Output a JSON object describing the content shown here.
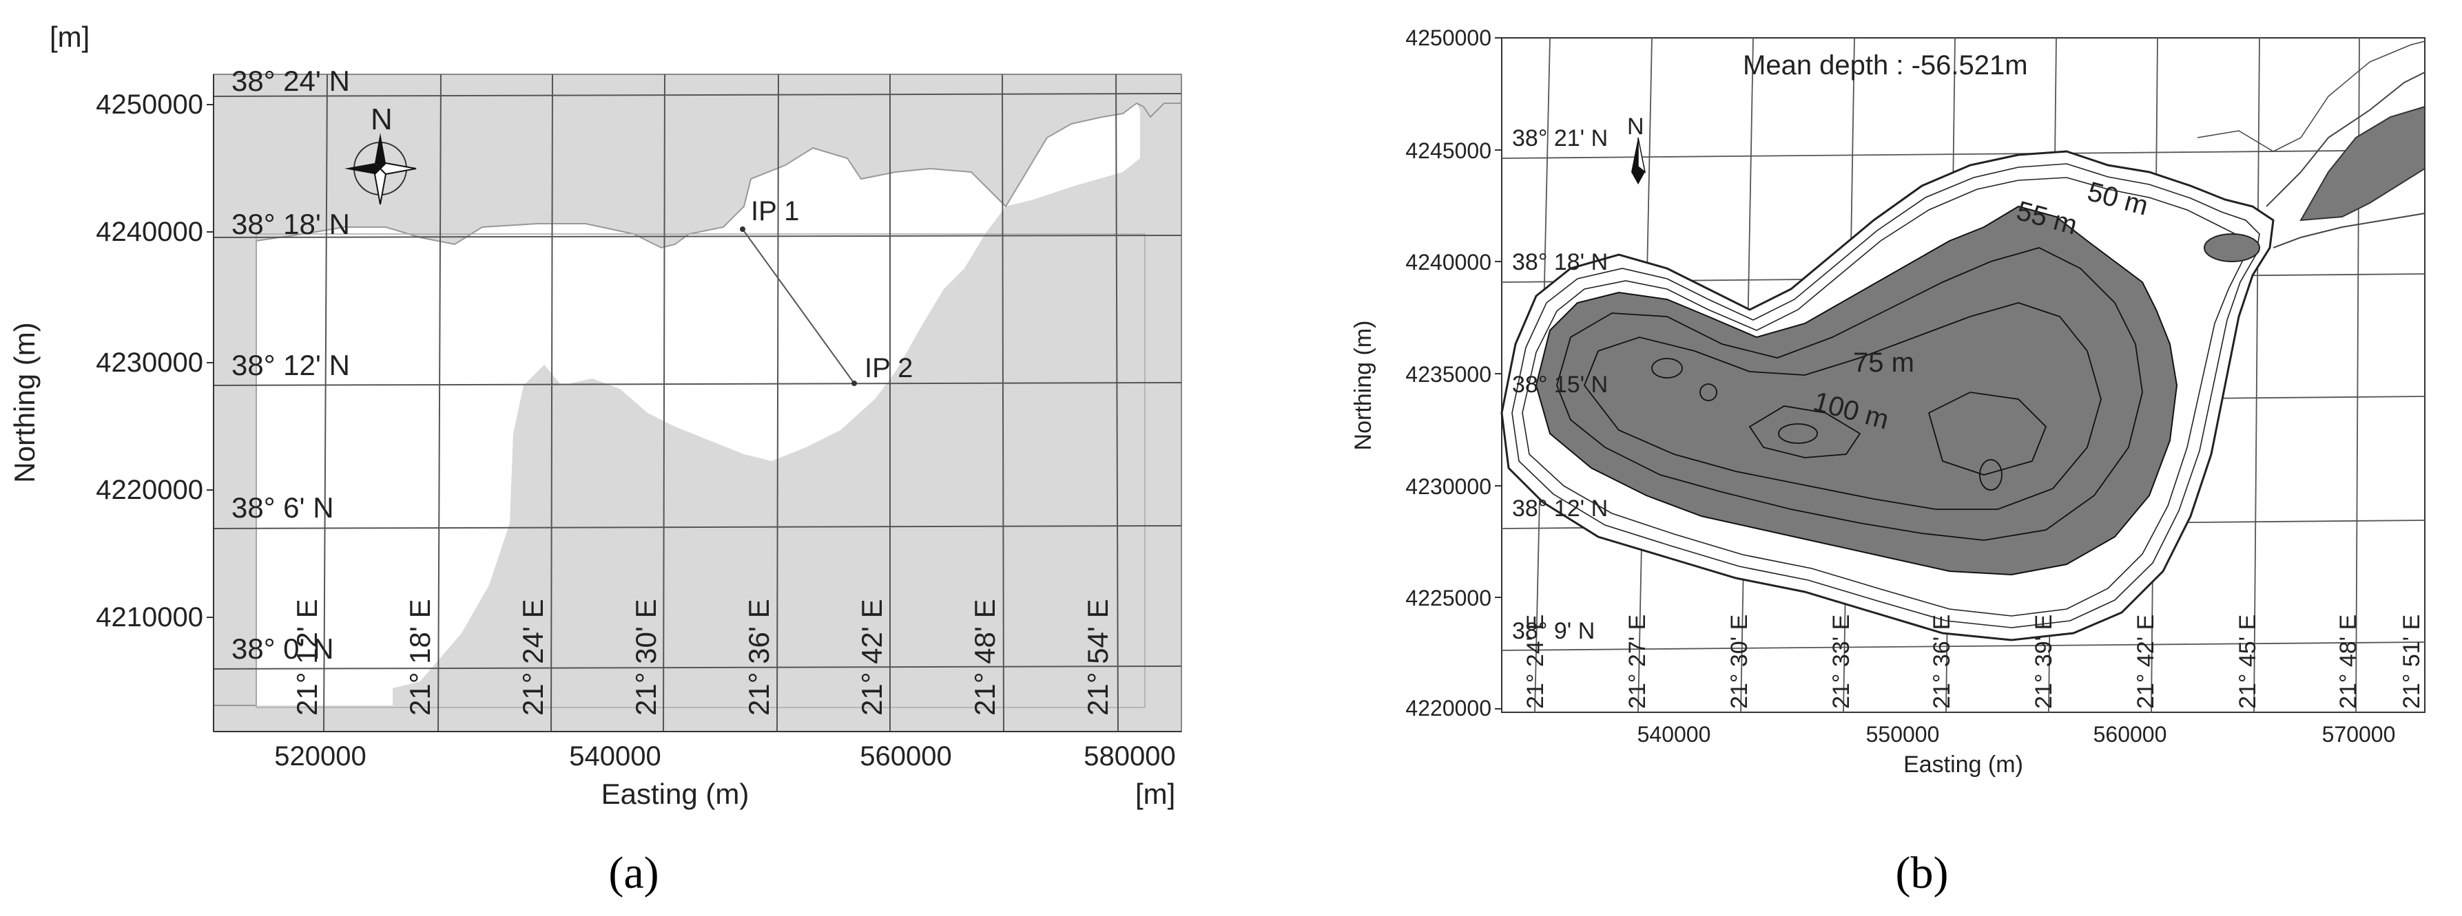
{
  "panel_a": {
    "unit_top": "[m]",
    "unit_bottom": "[m]",
    "x_label": "Easting (m)",
    "y_label": "Northing (m)",
    "x_ticks": [
      "520000",
      "540000",
      "560000",
      "580000"
    ],
    "y_ticks": [
      "4250000",
      "4240000",
      "4230000",
      "4220000",
      "4210000"
    ],
    "lat_labels": [
      "38° 24' N",
      "38° 18' N",
      "38° 12' N",
      "38° 6' N",
      "38° 0' N"
    ],
    "lon_labels": [
      "21° 12' E",
      "21° 18' E",
      "21° 24' E",
      "21° 30' E",
      "21° 36' E",
      "21° 42' E",
      "21° 48' E",
      "21° 54' E"
    ],
    "compass_label": "N",
    "points": [
      "IP 1",
      "IP 2"
    ],
    "caption": "(a)",
    "colors": {
      "land": "#d9d9d9",
      "water": "#ffffff",
      "grid": "#555555"
    }
  },
  "panel_b": {
    "title": "Mean depth : -56.521m",
    "x_label": "Easting (m)",
    "y_label": "Northing (m)",
    "x_ticks": [
      "540000",
      "550000",
      "560000",
      "570000"
    ],
    "y_ticks": [
      "4250000",
      "4245000",
      "4240000",
      "4235000",
      "4230000",
      "4225000",
      "4220000"
    ],
    "lat_labels": [
      "38° 21' N",
      "38° 18' N",
      "38° 15' N",
      "38° 12' N",
      "38° 9' N"
    ],
    "lon_labels": [
      "21° 24' E",
      "21° 27' E",
      "21° 30' E",
      "21° 33' E",
      "21° 36' E",
      "21° 39' E",
      "21° 42' E",
      "21° 45' E",
      "21° 48' E",
      "21° 51' E"
    ],
    "compass_label": "N",
    "contour_labels": [
      "50 m",
      "55 m",
      "75 m",
      "100 m"
    ],
    "caption": "(b)",
    "colors": {
      "deep": "#7a7a7a",
      "contour": "#111111"
    }
  }
}
